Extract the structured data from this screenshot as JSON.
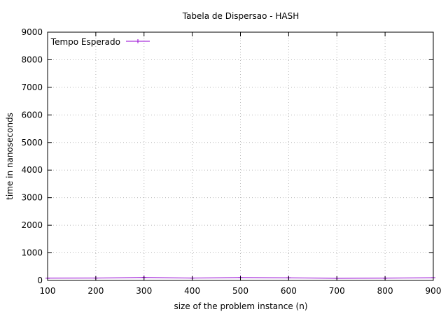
{
  "chart_data": {
    "type": "line",
    "title": "Tabela de Dispersao - HASH",
    "xlabel": "size of the problem instance (n)",
    "ylabel": "time in nanoseconds",
    "xlim": [
      100,
      900
    ],
    "ylim": [
      0,
      9000
    ],
    "xticks": [
      100,
      200,
      300,
      400,
      500,
      600,
      700,
      800,
      900
    ],
    "yticks": [
      0,
      1000,
      2000,
      3000,
      4000,
      5000,
      6000,
      7000,
      8000,
      9000
    ],
    "grid": true,
    "legend_position": "top-left",
    "series": [
      {
        "name": "Tempo Esperado",
        "color": "#9400d3",
        "marker": "plus",
        "x": [
          100,
          200,
          300,
          400,
          500,
          600,
          700,
          800,
          900
        ],
        "y": [
          80,
          85,
          110,
          85,
          105,
          95,
          75,
          80,
          100
        ]
      }
    ]
  }
}
